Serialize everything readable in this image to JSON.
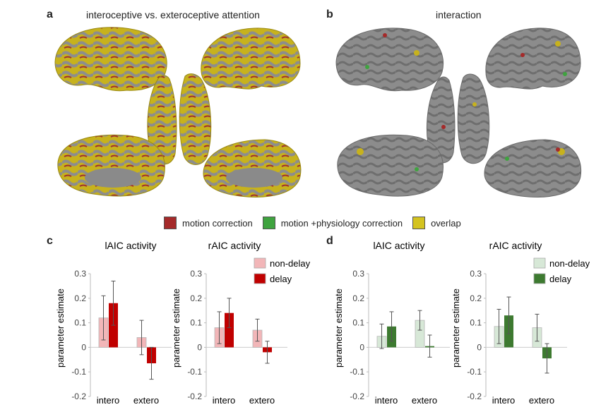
{
  "panel_letters": {
    "a": "a",
    "b": "b",
    "c": "c",
    "d": "d"
  },
  "brain_titles": {
    "a": "interoceptive vs. exteroceptive attention",
    "b": "interaction"
  },
  "colors": {
    "motion_correction": "#a52a2a",
    "motion_physiology_correction": "#3fa33f",
    "overlap": "#d4c320",
    "brain_gray": "#8a8a8a",
    "yellow_surface": "#c9b41c",
    "red_nondelay": "#f2b6b8",
    "red_delay": "#c00000",
    "green_nondelay": "#d7e8d7",
    "green_delay": "#3d7a30"
  },
  "overlay_legend": [
    {
      "label": "motion correction",
      "color": "#a52a2a"
    },
    {
      "label": "motion +physiology correction",
      "color": "#3fa33f"
    },
    {
      "label": "overlap",
      "color": "#d4c320"
    }
  ],
  "chart_data": [
    {
      "type": "bar",
      "panel": "c",
      "title": "lAIC activity",
      "categories": [
        "intero",
        "extero"
      ],
      "ylabel": "parameter  estimate",
      "ylim": [
        -0.2,
        0.3
      ],
      "yticks": [
        "-0.2",
        "-0.1",
        "0",
        "0.1",
        "0.2",
        "0.3"
      ],
      "series": [
        {
          "values": [
            0.12,
            0.04
          ],
          "errors": [
            0.09,
            0.07
          ],
          "color": "#f2b6b8"
        },
        {
          "values": [
            0.18,
            -0.065
          ],
          "errors": [
            0.09,
            0.065
          ],
          "color": "#c00000"
        }
      ],
      "legend": []
    },
    {
      "type": "bar",
      "panel": "c",
      "title": "rAIC activity",
      "categories": [
        "intero",
        "extero"
      ],
      "ylabel": "parameter  estimate",
      "ylim": [
        -0.2,
        0.3
      ],
      "yticks": [
        "-0.2",
        "-0.1",
        "0",
        "0.1",
        "0.2",
        "0.3"
      ],
      "series": [
        {
          "name": "non-delay",
          "values": [
            0.08,
            0.07
          ],
          "errors": [
            0.065,
            0.045
          ],
          "color": "#f2b6b8"
        },
        {
          "name": "delay",
          "values": [
            0.14,
            -0.02
          ],
          "errors": [
            0.06,
            0.045
          ],
          "color": "#c00000"
        }
      ],
      "legend": [
        "non-delay",
        "delay"
      ]
    },
    {
      "type": "bar",
      "panel": "d",
      "title": "lAIC activity",
      "categories": [
        "intero",
        "extero"
      ],
      "ylabel": "parameter  estimate",
      "ylim": [
        -0.2,
        0.3
      ],
      "yticks": [
        "-0.2",
        "-0.1",
        "0",
        "0.1",
        "0.2",
        "0.3"
      ],
      "series": [
        {
          "values": [
            0.045,
            0.11
          ],
          "errors": [
            0.05,
            0.04
          ],
          "color": "#d7e8d7"
        },
        {
          "values": [
            0.085,
            0.005
          ],
          "errors": [
            0.06,
            0.045
          ],
          "color": "#3d7a30"
        }
      ],
      "legend": []
    },
    {
      "type": "bar",
      "panel": "d",
      "title": "rAIC activity",
      "categories": [
        "intero",
        "extero"
      ],
      "ylabel": "parameter  estimate",
      "ylim": [
        -0.2,
        0.3
      ],
      "yticks": [
        "-0.2",
        "-0.1",
        "0",
        "0.1",
        "0.2",
        "0.3"
      ],
      "series": [
        {
          "name": "non-delay",
          "values": [
            0.085,
            0.08
          ],
          "errors": [
            0.07,
            0.055
          ],
          "color": "#d7e8d7"
        },
        {
          "name": "delay",
          "values": [
            0.13,
            -0.045
          ],
          "errors": [
            0.075,
            0.06
          ],
          "color": "#3d7a30"
        }
      ],
      "legend": [
        "non-delay",
        "delay"
      ]
    }
  ]
}
